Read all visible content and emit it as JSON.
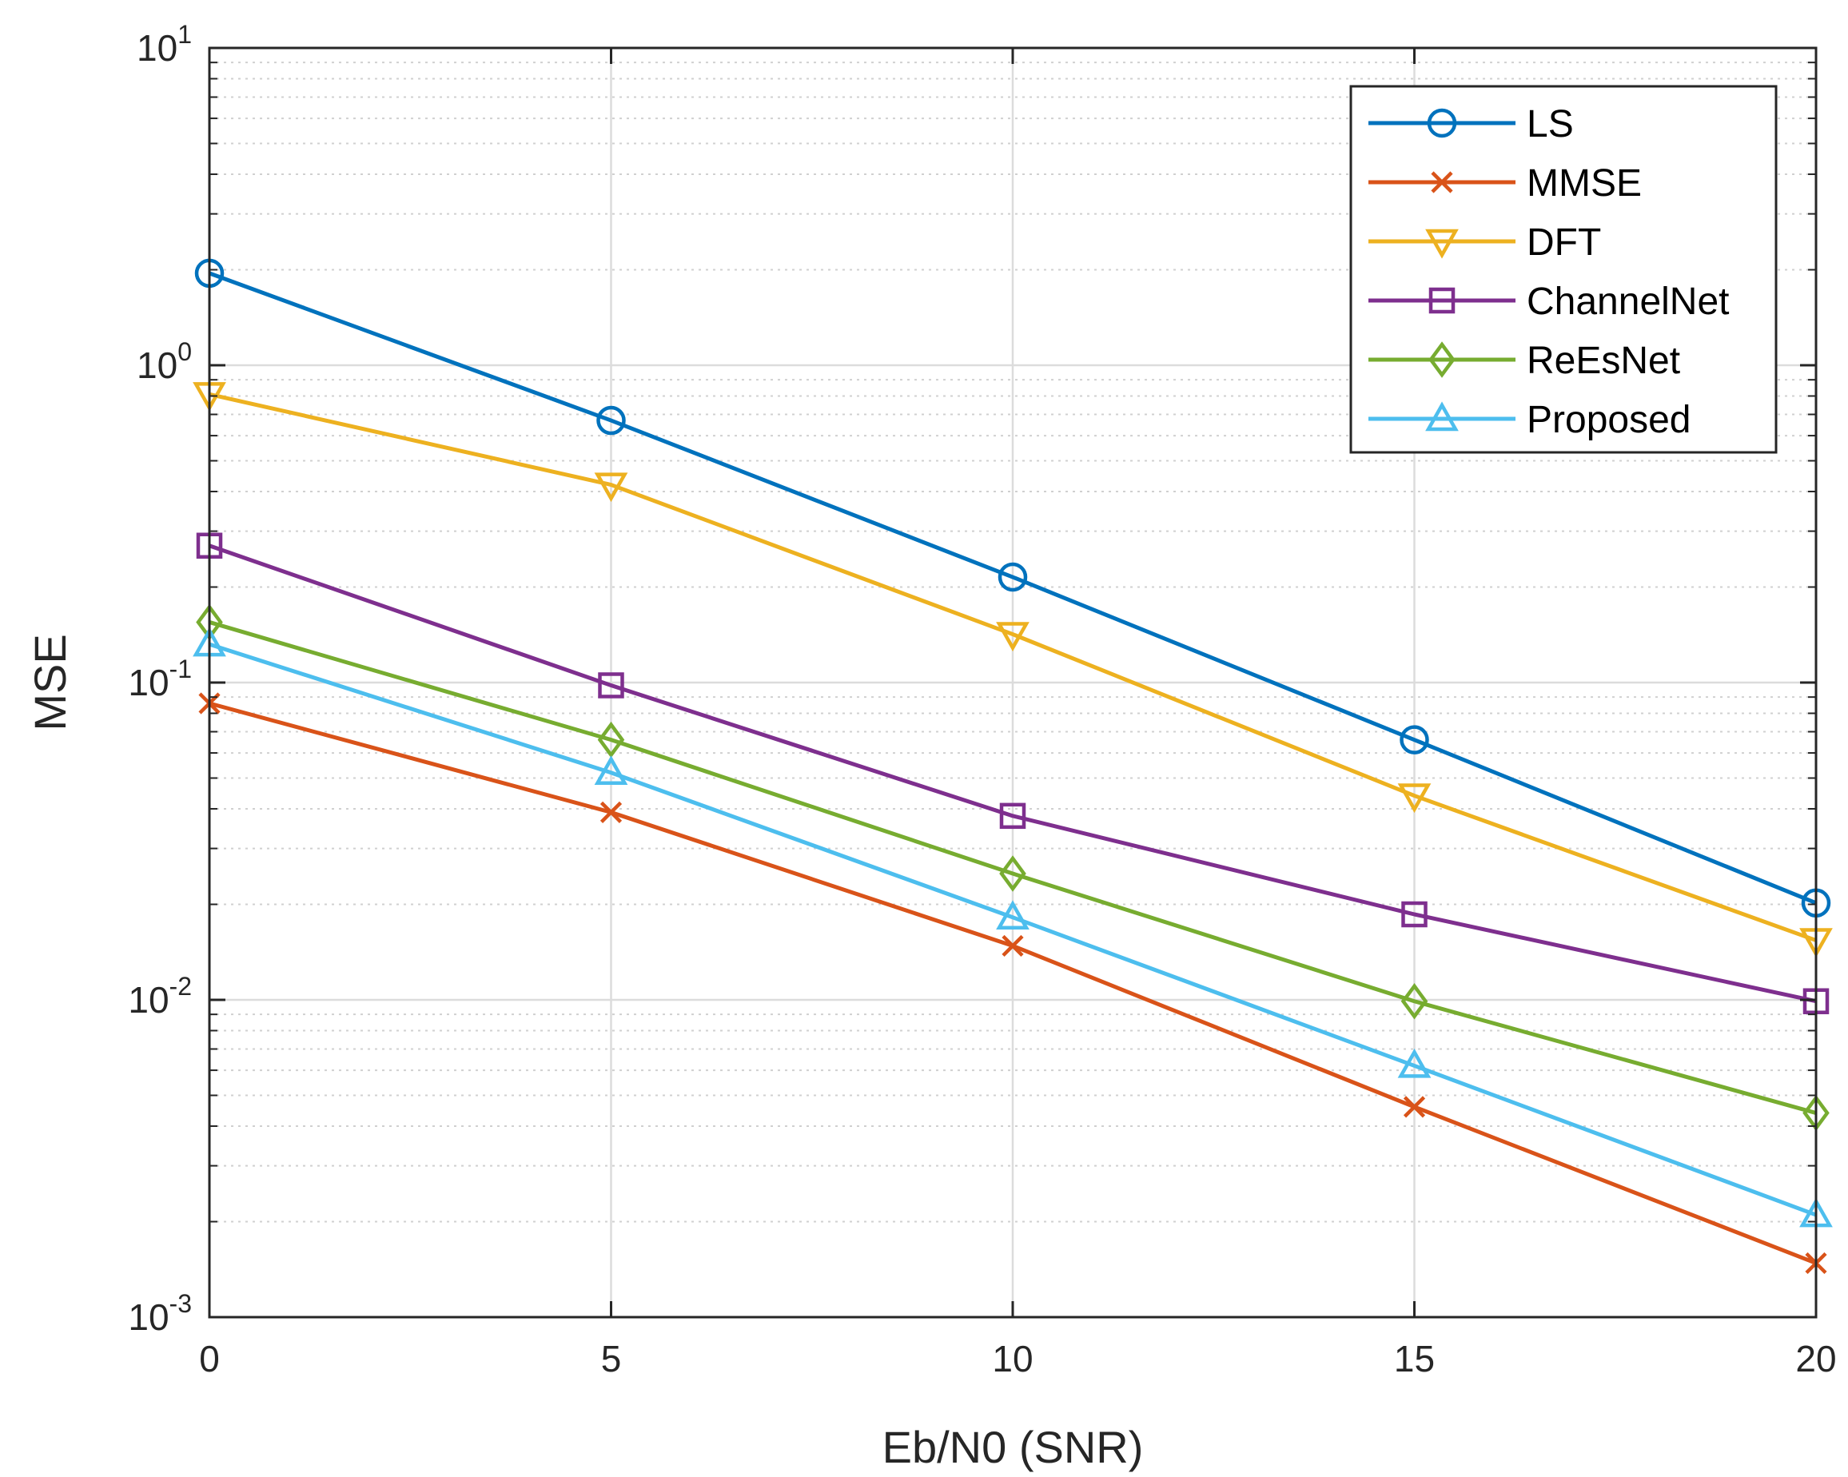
{
  "chart_data": {
    "type": "line",
    "title": "",
    "xlabel": "Eb/N0 (SNR)",
    "ylabel": "MSE",
    "yscale": "log",
    "xlim": [
      0,
      20
    ],
    "ylim": [
      0.001,
      10
    ],
    "grid": true,
    "legend_position": "top-right",
    "x": [
      0,
      5,
      10,
      15,
      20
    ],
    "x_ticks": [
      0,
      5,
      10,
      15,
      20
    ],
    "x_tick_labels": [
      "0",
      "5",
      "10",
      "15",
      "20"
    ],
    "y_ticks": [
      {
        "base": "10",
        "exp": "-3",
        "value": 0.001
      },
      {
        "base": "10",
        "exp": "-2",
        "value": 0.01
      },
      {
        "base": "10",
        "exp": "-1",
        "value": 0.1
      },
      {
        "base": "10",
        "exp": "0",
        "value": 1
      },
      {
        "base": "10",
        "exp": "1",
        "value": 10
      }
    ],
    "series": [
      {
        "name": "LS",
        "color": "#0072BD",
        "marker": "circle",
        "values": [
          1.95,
          0.67,
          0.215,
          0.066,
          0.0202
        ]
      },
      {
        "name": "MMSE",
        "color": "#D95319",
        "marker": "x",
        "values": [
          0.086,
          0.039,
          0.0148,
          0.0046,
          0.00148
        ]
      },
      {
        "name": "DFT",
        "color": "#EDB120",
        "marker": "triangle-down",
        "values": [
          0.81,
          0.42,
          0.142,
          0.044,
          0.0154
        ]
      },
      {
        "name": "ChannelNet",
        "color": "#7E2F8E",
        "marker": "square",
        "values": [
          0.27,
          0.098,
          0.038,
          0.0186,
          0.0099
        ]
      },
      {
        "name": "ReEsNet",
        "color": "#77AC30",
        "marker": "diamond",
        "values": [
          0.155,
          0.066,
          0.025,
          0.0099,
          0.0044
        ]
      },
      {
        "name": "Proposed",
        "color": "#4DBEEE",
        "marker": "triangle-up",
        "values": [
          0.132,
          0.052,
          0.0182,
          0.0062,
          0.0021
        ]
      }
    ]
  }
}
